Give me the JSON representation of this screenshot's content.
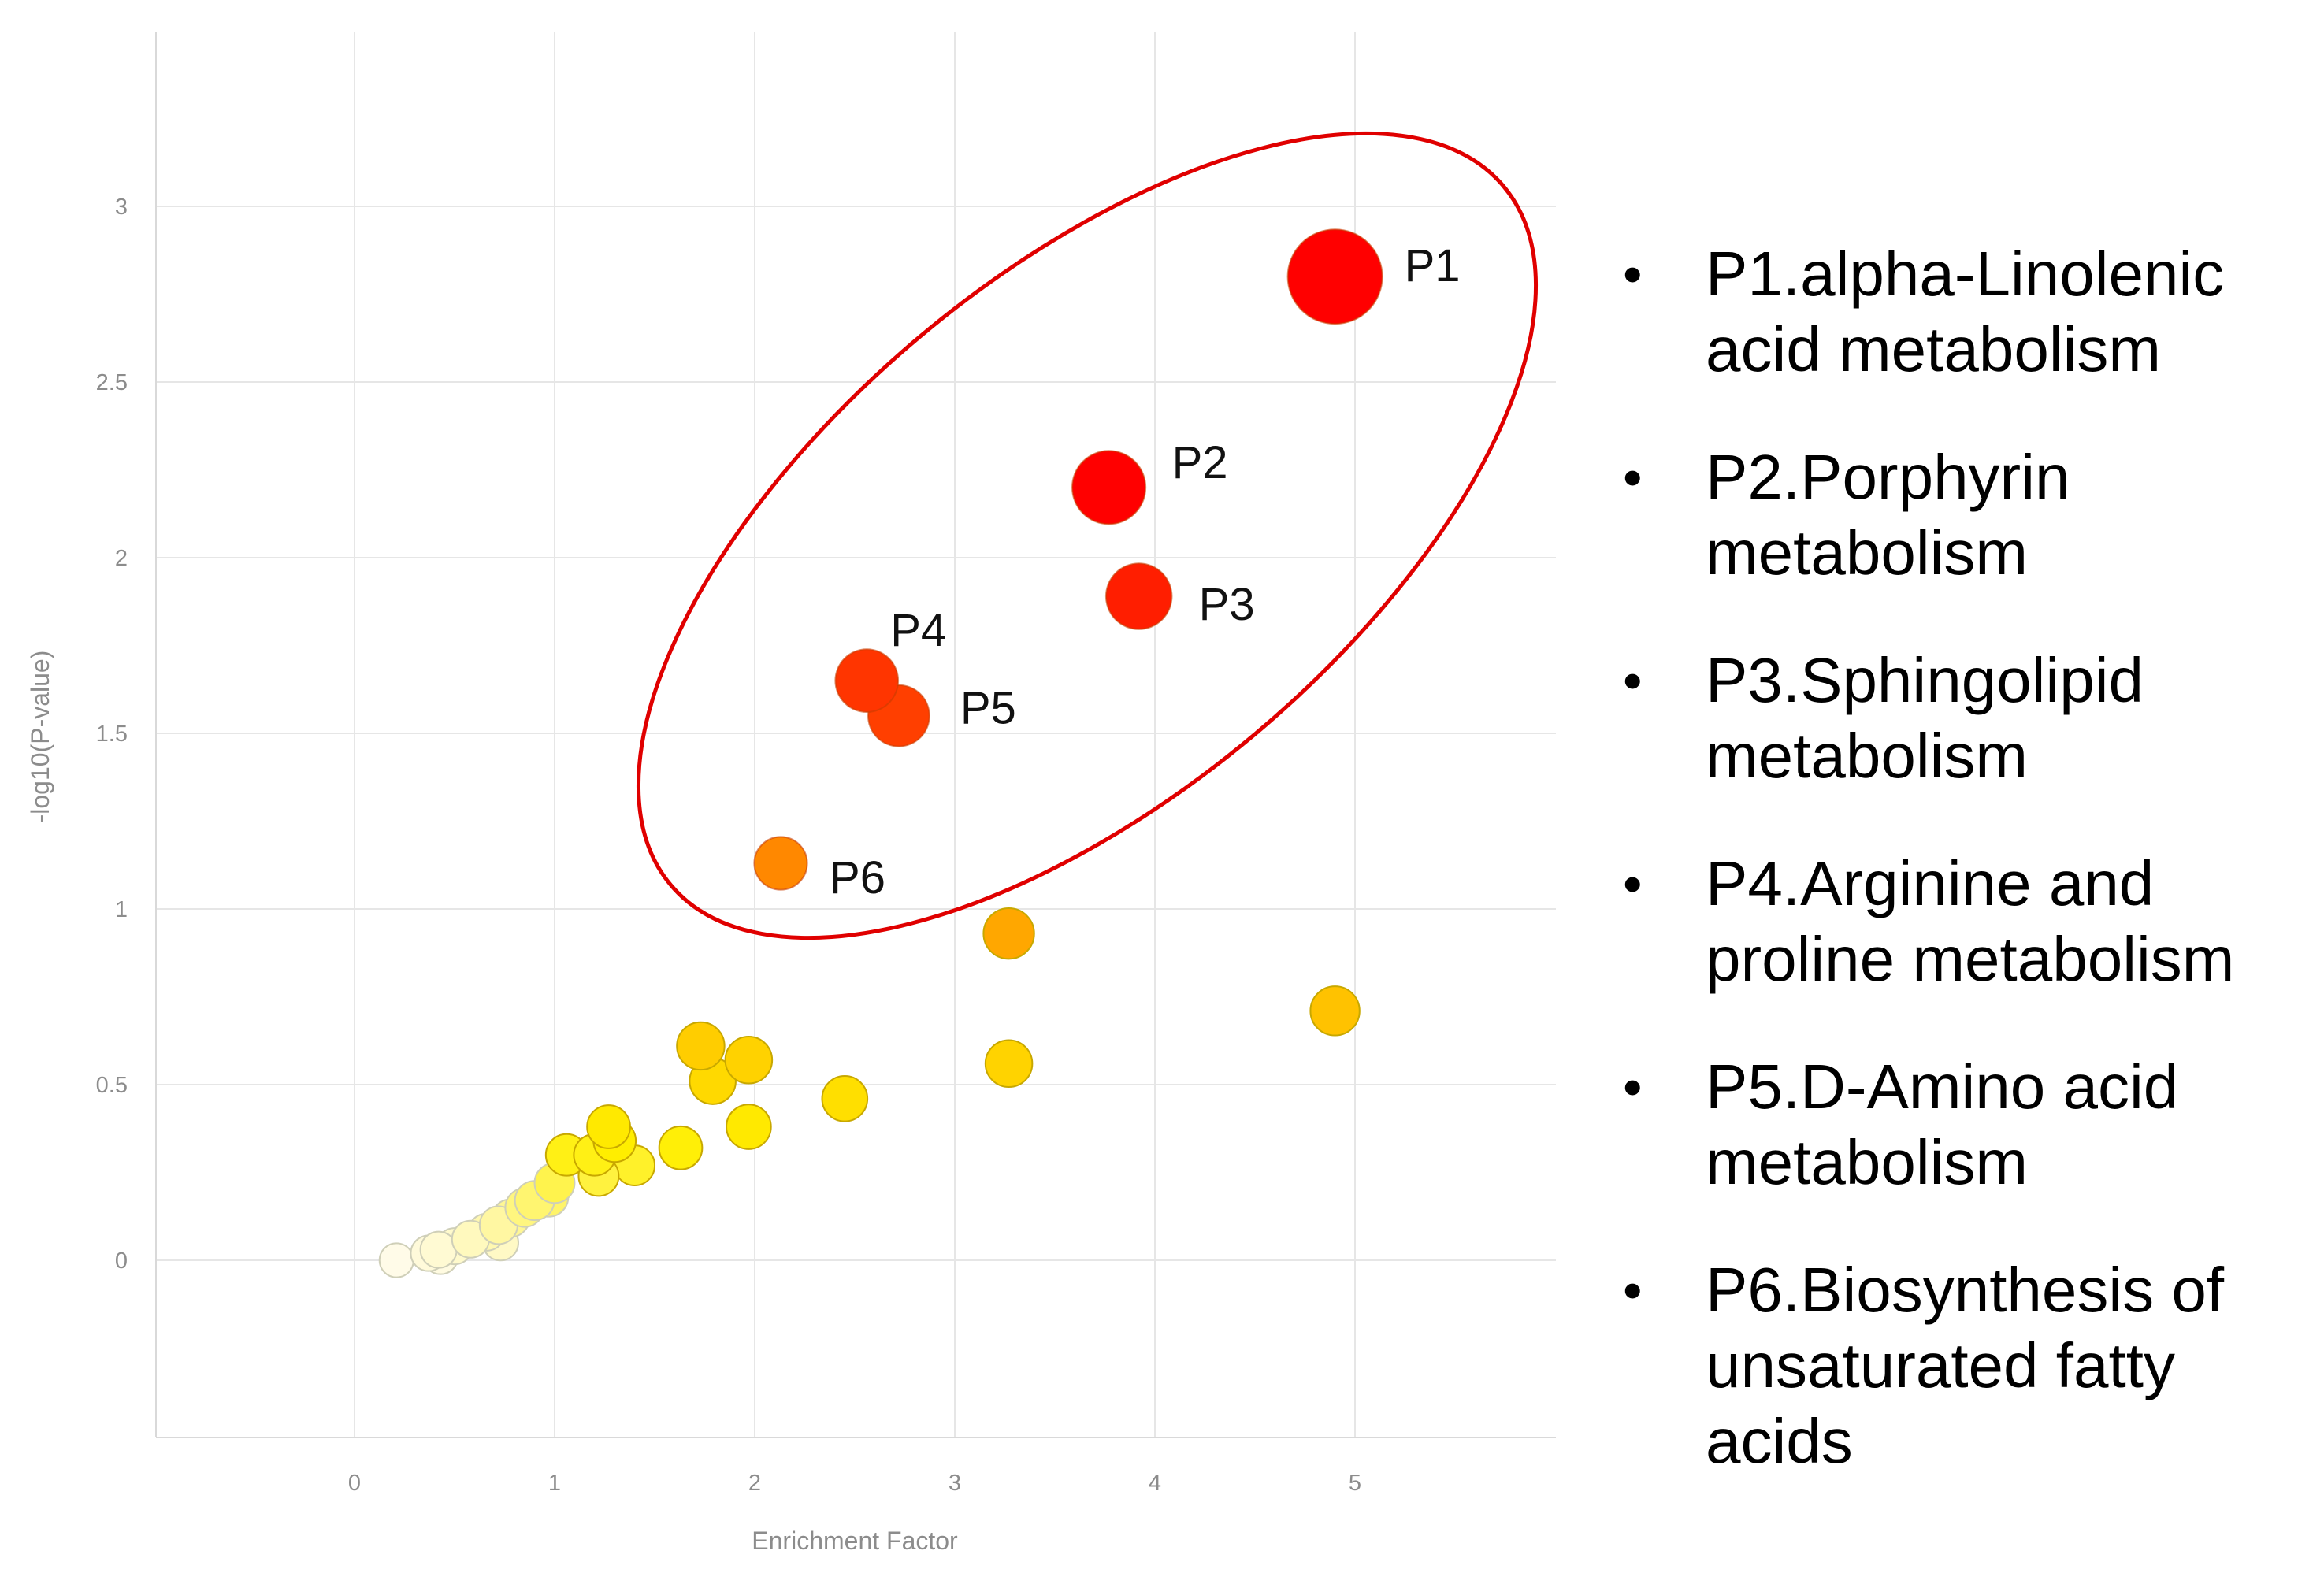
{
  "chart_data": {
    "type": "scatter",
    "title": "",
    "xlabel": "Enrichment Factor",
    "ylabel": "-log10(P-value)",
    "xlim": [
      -1,
      6
    ],
    "ylim": [
      -0.5,
      3.5
    ],
    "xticks": [
      "0",
      "1",
      "2",
      "3",
      "4",
      "5"
    ],
    "yticks": [
      "0",
      "0.5",
      "1",
      "1.5",
      "2",
      "2.5",
      "3"
    ],
    "grid": true,
    "color_scale": [
      "#fffbe8",
      "#ffef00",
      "#ffa000",
      "#ff4000",
      "#ff0000"
    ],
    "highlight_outline_color": "#e00000",
    "points": [
      {
        "label": "P1",
        "x": 4.9,
        "y": 2.8,
        "size": 1.0
      },
      {
        "label": "P2",
        "x": 3.77,
        "y": 2.2,
        "size": 0.72
      },
      {
        "label": "P3",
        "x": 3.92,
        "y": 1.89,
        "size": 0.62
      },
      {
        "label": "P4",
        "x": 2.56,
        "y": 1.65,
        "size": 0.58
      },
      {
        "label": "P5",
        "x": 2.72,
        "y": 1.55,
        "size": 0.56
      },
      {
        "label": "P6",
        "x": 2.13,
        "y": 1.13,
        "size": 0.45
      },
      {
        "label": "",
        "x": 3.27,
        "y": 0.93,
        "size": 0.42
      },
      {
        "label": "",
        "x": 4.9,
        "y": 0.71,
        "size": 0.4
      },
      {
        "label": "",
        "x": 1.73,
        "y": 0.61,
        "size": 0.38
      },
      {
        "label": "",
        "x": 1.97,
        "y": 0.57,
        "size": 0.37
      },
      {
        "label": "",
        "x": 3.27,
        "y": 0.56,
        "size": 0.37
      },
      {
        "label": "",
        "x": 1.79,
        "y": 0.51,
        "size": 0.36
      },
      {
        "label": "",
        "x": 2.45,
        "y": 0.46,
        "size": 0.35
      },
      {
        "label": "",
        "x": 1.97,
        "y": 0.38,
        "size": 0.34
      },
      {
        "label": "",
        "x": 1.27,
        "y": 0.38,
        "size": 0.32
      },
      {
        "label": "",
        "x": 1.3,
        "y": 0.34,
        "size": 0.31
      },
      {
        "label": "",
        "x": 1.63,
        "y": 0.32,
        "size": 0.32
      },
      {
        "label": "",
        "x": 1.06,
        "y": 0.3,
        "size": 0.3
      },
      {
        "label": "",
        "x": 1.2,
        "y": 0.3,
        "size": 0.3
      },
      {
        "label": "",
        "x": 1.4,
        "y": 0.27,
        "size": 0.28
      },
      {
        "label": "",
        "x": 1.22,
        "y": 0.24,
        "size": 0.28
      },
      {
        "label": "",
        "x": 1.0,
        "y": 0.22,
        "size": 0.28
      },
      {
        "label": "",
        "x": 0.97,
        "y": 0.18,
        "size": 0.27
      },
      {
        "label": "",
        "x": 0.9,
        "y": 0.17,
        "size": 0.27
      },
      {
        "label": "",
        "x": 0.85,
        "y": 0.15,
        "size": 0.26
      },
      {
        "label": "",
        "x": 0.78,
        "y": 0.12,
        "size": 0.25
      },
      {
        "label": "",
        "x": 0.72,
        "y": 0.1,
        "size": 0.25
      },
      {
        "label": "",
        "x": 0.66,
        "y": 0.08,
        "size": 0.24
      },
      {
        "label": "",
        "x": 0.58,
        "y": 0.06,
        "size": 0.24
      },
      {
        "label": "",
        "x": 0.73,
        "y": 0.05,
        "size": 0.22
      },
      {
        "label": "",
        "x": 0.5,
        "y": 0.04,
        "size": 0.23
      },
      {
        "label": "",
        "x": 0.42,
        "y": 0.03,
        "size": 0.23
      },
      {
        "label": "",
        "x": 0.37,
        "y": 0.02,
        "size": 0.22
      },
      {
        "label": "",
        "x": 0.43,
        "y": 0.01,
        "size": 0.21
      },
      {
        "label": "",
        "x": 0.21,
        "y": 0.0,
        "size": 0.2
      }
    ]
  },
  "legend": [
    "P1.alpha-Linolenic acid metabolism",
    "P2.Porphyrin metabolism",
    "P3.Sphingolipid metabolism",
    "P4.Arginine and proline metabolism",
    "P5.D-Amino acid metabolism",
    "P6.Biosynthesis of unsaturated fatty acids"
  ]
}
